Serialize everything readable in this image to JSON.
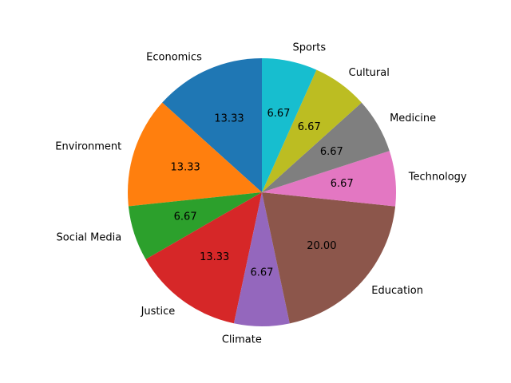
{
  "chart_data": {
    "type": "pie",
    "title": "",
    "start_angle_deg": 90,
    "direction": "counterclockwise",
    "value_format": "%.2f",
    "slices": [
      {
        "label": "Economics",
        "value": 13.33,
        "color": "#1f77b4"
      },
      {
        "label": "Environment",
        "value": 13.33,
        "color": "#ff7f0e"
      },
      {
        "label": "Social Media",
        "value": 6.67,
        "color": "#2ca02c"
      },
      {
        "label": "Justice",
        "value": 13.33,
        "color": "#d62728"
      },
      {
        "label": "Climate",
        "value": 6.67,
        "color": "#9467bd"
      },
      {
        "label": "Education",
        "value": 20.0,
        "color": "#8c564b"
      },
      {
        "label": "Technology",
        "value": 6.67,
        "color": "#e377c2"
      },
      {
        "label": "Medicine",
        "value": 6.67,
        "color": "#7f7f7f"
      },
      {
        "label": "Cultural",
        "value": 6.67,
        "color": "#bcbd22"
      },
      {
        "label": "Sports",
        "value": 6.67,
        "color": "#17becf"
      }
    ]
  }
}
